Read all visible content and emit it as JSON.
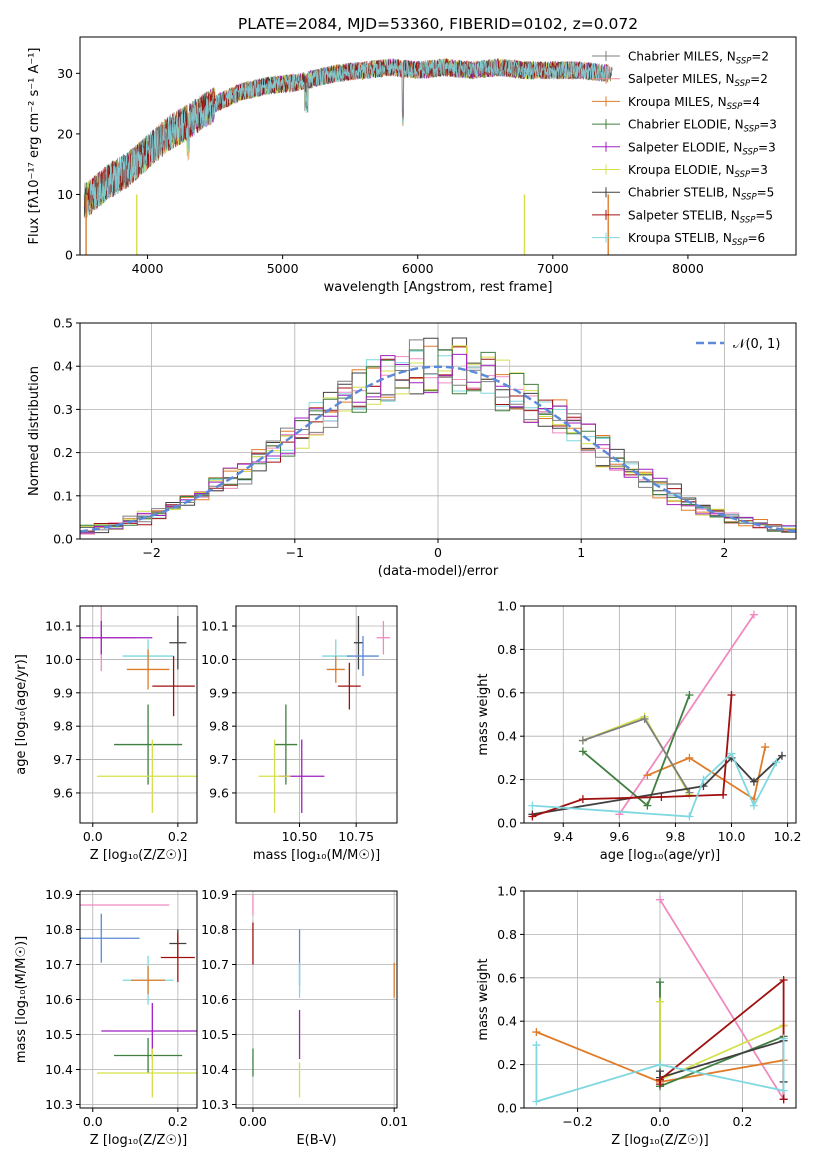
{
  "figure": {
    "title": "PLATE=2084, MJD=53360, FIBERID=0102, z=0.072"
  },
  "chart_data": [
    {
      "type": "line",
      "panel": "spectrum",
      "xlabel": "wavelength [Angstrom, rest frame]",
      "ylabel": "Flux [fλ10⁻¹⁷ erg cm⁻² s⁻¹ A⁻¹]",
      "xlim": [
        3500,
        8800
      ],
      "ylim": [
        0,
        36
      ],
      "xticks": [
        4000,
        5000,
        6000,
        7000,
        8000
      ],
      "yticks": [
        0,
        10,
        20,
        30
      ],
      "grid": false,
      "legend_position": "upper right",
      "spectrum_profile": {
        "x": [
          3550,
          3700,
          3850,
          4000,
          4150,
          4300,
          4500,
          4700,
          4900,
          5100,
          5200,
          5400,
          5600,
          5800,
          6000,
          6200,
          6400,
          6600,
          6800,
          7000,
          7200,
          7400
        ],
        "y": [
          9,
          12,
          14,
          17,
          20,
          22,
          25,
          27,
          28,
          28.5,
          29,
          30,
          30.5,
          31,
          30.5,
          31,
          30.5,
          31,
          30.5,
          30.5,
          30.5,
          30
        ]
      },
      "series": [
        {
          "name": "Chabrier MILES, N_SSP=2",
          "label_main": "Chabrier MILES, N",
          "label_sub": "SSP",
          "label_tail": "=2",
          "color": "#7f7f7f"
        },
        {
          "name": "Salpeter MILES, N_SSP=2",
          "label_main": "Salpeter MILES, N",
          "label_sub": "SSP",
          "label_tail": "=2",
          "color": "#f08a8a"
        },
        {
          "name": "Kroupa MILES, N_SSP=4",
          "label_main": "Kroupa MILES, N",
          "label_sub": "SSP",
          "label_tail": "=4",
          "color": "#e07b28"
        },
        {
          "name": "Chabrier ELODIE, N_SSP=3",
          "label_main": "Chabrier ELODIE, N",
          "label_sub": "SSP",
          "label_tail": "=3",
          "color": "#3f7f3f"
        },
        {
          "name": "Salpeter ELODIE, N_SSP=3",
          "label_main": "Salpeter ELODIE, N",
          "label_sub": "SSP",
          "label_tail": "=3",
          "color": "#a020c0"
        },
        {
          "name": "Kroupa ELODIE, N_SSP=3",
          "label_main": "Kroupa ELODIE, N",
          "label_sub": "SSP",
          "label_tail": "=3",
          "color": "#d4e04a"
        },
        {
          "name": "Chabrier STELIB, N_SSP=5",
          "label_main": "Chabrier STELIB, N",
          "label_sub": "SSP",
          "label_tail": "=5",
          "color": "#404040"
        },
        {
          "name": "Salpeter STELIB, N_SSP=5",
          "label_main": "Salpeter STELIB, N",
          "label_sub": "SSP",
          "label_tail": "=5",
          "color": "#a01010"
        },
        {
          "name": "Kroupa STELIB, N_SSP=6",
          "label_main": "Kroupa STELIB, N",
          "label_sub": "SSP",
          "label_tail": "=6",
          "color": "#7fd8e0"
        }
      ]
    },
    {
      "type": "bar",
      "panel": "residual histogram",
      "xlabel": "(data-model)/error",
      "ylabel": "Normed distribution",
      "xlim": [
        -2.5,
        2.5
      ],
      "ylim": [
        0,
        0.5
      ],
      "xticks": [
        -2,
        -1,
        0,
        1,
        2
      ],
      "yticks": [
        0.0,
        0.1,
        0.2,
        0.3,
        0.4,
        0.5
      ],
      "grid": true,
      "legend": "𝒩(0, 1)",
      "legend_position": "upper right",
      "gaussian": {
        "mean": 0,
        "sigma": 1,
        "color": "#5b8ad8"
      },
      "bin_width": 0.1,
      "step_colors": [
        "#f08ac0",
        "#e07b28",
        "#7fd8e0",
        "#a01010",
        "#404040",
        "#d4e04a",
        "#3f7f3f",
        "#a020c0",
        "#7f7f7f"
      ]
    },
    {
      "type": "scatter",
      "panel": "age vs metallicity",
      "xlabel": "Z [log₁₀(Z/Z☉)]",
      "ylabel": "age  [log₁₀(age/yr)]",
      "xlim": [
        -0.03,
        0.245
      ],
      "ylim": [
        9.51,
        10.16
      ],
      "xticks": [
        0.0,
        0.2
      ],
      "yticks": [
        9.6,
        9.7,
        9.8,
        9.9,
        10.0,
        10.1
      ],
      "grid": true,
      "points": [
        {
          "x": 0.02,
          "y": 10.065,
          "xerr": 0.08,
          "yerr": 0.1,
          "color": "#f08ac0"
        },
        {
          "x": 0.02,
          "y": 10.065,
          "xerr": 0.12,
          "yerr": 0.05,
          "color": "#a020c0"
        },
        {
          "x": 0.2,
          "y": 10.05,
          "xerr": 0.02,
          "yerr": 0.08,
          "color": "#404040"
        },
        {
          "x": 0.13,
          "y": 10.01,
          "xerr": 0.06,
          "yerr": 0.05,
          "color": "#7fd8e0"
        },
        {
          "x": 0.13,
          "y": 9.97,
          "xerr": 0.05,
          "yerr": 0.06,
          "color": "#e07b28"
        },
        {
          "x": 0.19,
          "y": 9.92,
          "xerr": 0.05,
          "yerr": 0.09,
          "color": "#a01010"
        },
        {
          "x": 0.13,
          "y": 9.745,
          "xerr": 0.08,
          "yerr": 0.12,
          "color": "#3f7f3f"
        },
        {
          "x": 0.14,
          "y": 9.65,
          "xerr": 0.13,
          "yerr": 0.11,
          "color": "#d4e04a"
        }
      ]
    },
    {
      "type": "scatter",
      "panel": "age vs mass",
      "xlabel": "mass [log₁₀(M/M☉)]",
      "ylabel": "",
      "xlim": [
        10.22,
        10.93
      ],
      "ylim": [
        9.51,
        10.16
      ],
      "xticks": [
        10.5,
        10.75
      ],
      "xtick_labels": [
        "10.50",
        "10.75"
      ],
      "yticks": [
        9.6,
        9.7,
        9.8,
        9.9,
        10.0,
        10.1
      ],
      "grid": true,
      "points": [
        {
          "x": 10.87,
          "y": 10.065,
          "xerr": 0.03,
          "yerr": 0.05,
          "color": "#f08ac0"
        },
        {
          "x": 10.76,
          "y": 10.05,
          "xerr": 0.02,
          "yerr": 0.08,
          "color": "#404040"
        },
        {
          "x": 10.66,
          "y": 10.01,
          "xerr": 0.06,
          "yerr": 0.05,
          "color": "#7fd8e0"
        },
        {
          "x": 10.78,
          "y": 10.01,
          "xerr": 0.07,
          "yerr": 0.06,
          "color": "#5b8ad8"
        },
        {
          "x": 10.66,
          "y": 9.97,
          "xerr": 0.04,
          "yerr": 0.04,
          "color": "#e07b28"
        },
        {
          "x": 10.72,
          "y": 9.92,
          "xerr": 0.05,
          "yerr": 0.07,
          "color": "#a01010"
        },
        {
          "x": 10.44,
          "y": 9.745,
          "xerr": 0.05,
          "yerr": 0.12,
          "color": "#3f7f3f"
        },
        {
          "x": 10.51,
          "y": 9.65,
          "xerr": 0.1,
          "yerr": 0.11,
          "color": "#a020c0"
        },
        {
          "x": 10.39,
          "y": 9.65,
          "xerr": 0.07,
          "yerr": 0.11,
          "color": "#d4e04a"
        }
      ]
    },
    {
      "type": "line",
      "panel": "mass weight vs age",
      "xlabel": "age  [log₁₀(age/yr)]",
      "ylabel": "mass weight",
      "xlim": [
        9.26,
        10.23
      ],
      "ylim": [
        0,
        1.0
      ],
      "xticks": [
        9.4,
        9.6,
        9.8,
        10.0,
        10.2
      ],
      "yticks": [
        0.0,
        0.2,
        0.4,
        0.6,
        0.8,
        1.0
      ],
      "grid": true,
      "series": [
        {
          "color": "#f08ac0",
          "x": [
            9.6,
            10.08
          ],
          "y": [
            0.04,
            0.96
          ]
        },
        {
          "color": "#e07b28",
          "x": [
            9.7,
            9.85,
            10.08,
            10.12
          ],
          "y": [
            0.22,
            0.3,
            0.11,
            0.35
          ]
        },
        {
          "color": "#3f7f3f",
          "x": [
            9.47,
            9.7,
            9.85
          ],
          "y": [
            0.33,
            0.08,
            0.59
          ]
        },
        {
          "color": "#d4e04a",
          "x": [
            9.47,
            9.69,
            9.85
          ],
          "y": [
            0.38,
            0.49,
            0.13
          ]
        },
        {
          "color": "#7f7f7f",
          "x": [
            9.47,
            9.69,
            9.85
          ],
          "y": [
            0.38,
            0.48,
            0.14
          ]
        },
        {
          "color": "#404040",
          "x": [
            9.29,
            9.9,
            10.0,
            10.08,
            10.18
          ],
          "y": [
            0.04,
            0.17,
            0.3,
            0.19,
            0.31
          ]
        },
        {
          "color": "#a01010",
          "x": [
            9.29,
            9.47,
            9.75,
            9.97,
            10.0
          ],
          "y": [
            0.03,
            0.11,
            0.12,
            0.13,
            0.59
          ]
        },
        {
          "color": "#7fd8e0",
          "x": [
            9.29,
            9.85,
            9.9,
            10.0,
            10.08,
            10.16
          ],
          "y": [
            0.08,
            0.03,
            0.2,
            0.32,
            0.08,
            0.28
          ]
        }
      ]
    },
    {
      "type": "scatter",
      "panel": "mass vs metallicity",
      "xlabel": "Z [log₁₀(Z/Z☉)]",
      "ylabel": "mass [log₁₀(M/M☉)]",
      "xlim": [
        -0.03,
        0.245
      ],
      "ylim": [
        10.29,
        10.91
      ],
      "xticks": [
        0.0,
        0.2
      ],
      "yticks": [
        10.3,
        10.4,
        10.5,
        10.6,
        10.7,
        10.8,
        10.9
      ],
      "grid": true,
      "points": [
        {
          "x": 0.0,
          "y": 10.87,
          "xerr": 0.18,
          "yerr": 0.0,
          "color": "#f08ac0"
        },
        {
          "x": 0.02,
          "y": 10.775,
          "xerr": 0.09,
          "yerr": 0.07,
          "color": "#5b8ad8"
        },
        {
          "x": 0.2,
          "y": 10.76,
          "xerr": 0.02,
          "yerr": 0.04,
          "color": "#404040"
        },
        {
          "x": 0.2,
          "y": 10.72,
          "xerr": 0.04,
          "yerr": 0.07,
          "color": "#a01010"
        },
        {
          "x": 0.13,
          "y": 10.655,
          "xerr": 0.06,
          "yerr": 0.07,
          "color": "#7fd8e0"
        },
        {
          "x": 0.13,
          "y": 10.655,
          "xerr": 0.04,
          "yerr": 0.04,
          "color": "#e07b28"
        },
        {
          "x": 0.14,
          "y": 10.51,
          "xerr": 0.12,
          "yerr": 0.08,
          "color": "#a020c0"
        },
        {
          "x": 0.13,
          "y": 10.44,
          "xerr": 0.08,
          "yerr": 0.05,
          "color": "#3f7f3f"
        },
        {
          "x": 0.14,
          "y": 10.39,
          "xerr": 0.13,
          "yerr": 0.07,
          "color": "#d4e04a"
        }
      ]
    },
    {
      "type": "scatter",
      "panel": "mass vs extinction",
      "xlabel": "E(B-V)",
      "ylabel": "",
      "xlim": [
        -0.0012,
        0.0102
      ],
      "ylim": [
        10.29,
        10.91
      ],
      "xticks": [
        0.0,
        0.01
      ],
      "xtick_labels": [
        "0.00",
        "0.01"
      ],
      "yticks": [
        10.3,
        10.4,
        10.5,
        10.6,
        10.7,
        10.8,
        10.9
      ],
      "grid": true,
      "points": [
        {
          "x": 0.0,
          "y": 10.87,
          "xerr": 0,
          "yerr": 0.03,
          "color": "#f08ac0"
        },
        {
          "x": 0.0,
          "y": 10.76,
          "xerr": 0,
          "yerr": 0.06,
          "color": "#a01010"
        },
        {
          "x": 0.0,
          "y": 10.42,
          "xerr": 0,
          "yerr": 0.04,
          "color": "#3f7f3f"
        },
        {
          "x": 0.0033,
          "y": 10.72,
          "xerr": 0,
          "yerr": 0.08,
          "color": "#5b8ad8"
        },
        {
          "x": 0.0033,
          "y": 10.655,
          "xerr": 0,
          "yerr": 0.05,
          "color": "#7fd8e0"
        },
        {
          "x": 0.0033,
          "y": 10.5,
          "xerr": 0,
          "yerr": 0.07,
          "color": "#a020c0"
        },
        {
          "x": 0.0033,
          "y": 10.37,
          "xerr": 0,
          "yerr": 0.05,
          "color": "#d4e04a"
        },
        {
          "x": 0.01,
          "y": 10.655,
          "xerr": 0,
          "yerr": 0.05,
          "color": "#e07b28"
        }
      ]
    },
    {
      "type": "line",
      "panel": "mass weight vs metallicity",
      "xlabel": "Z [log₁₀(Z/Z☉)]",
      "ylabel": "mass weight",
      "xlim": [
        -0.33,
        0.33
      ],
      "ylim": [
        0,
        1.0
      ],
      "xticks": [
        -0.2,
        0.0,
        0.2
      ],
      "xtick_labels": [
        "−0.2",
        "0.0",
        "0.2"
      ],
      "yticks": [
        0.0,
        0.2,
        0.4,
        0.6,
        0.8,
        1.0
      ],
      "grid": true,
      "series": [
        {
          "color": "#f08ac0",
          "x": [
            0.0,
            0.3
          ],
          "y": [
            0.96,
            0.04
          ]
        },
        {
          "color": "#e07b28",
          "x": [
            -0.3,
            0.0,
            0.3,
            0.3
          ],
          "y": [
            0.35,
            0.12,
            0.22,
            0.38
          ]
        },
        {
          "color": "#3f7f3f",
          "x": [
            0.0,
            0.0,
            0.3
          ],
          "y": [
            0.58,
            0.1,
            0.33
          ]
        },
        {
          "color": "#d4e04a",
          "x": [
            0.0,
            0.0,
            0.3
          ],
          "y": [
            0.49,
            0.13,
            0.38
          ]
        },
        {
          "color": "#404040",
          "x": [
            0.0,
            0.0,
            0.3,
            0.3
          ],
          "y": [
            0.17,
            0.14,
            0.31,
            0.12
          ]
        },
        {
          "color": "#a01010",
          "x": [
            0.0,
            0.0,
            0.3,
            0.3
          ],
          "y": [
            0.11,
            0.13,
            0.59,
            0.04
          ]
        },
        {
          "color": "#7fd8e0",
          "x": [
            -0.3,
            -0.3,
            0.0,
            0.3,
            0.3
          ],
          "y": [
            0.29,
            0.03,
            0.2,
            0.08,
            0.32
          ]
        }
      ]
    }
  ]
}
